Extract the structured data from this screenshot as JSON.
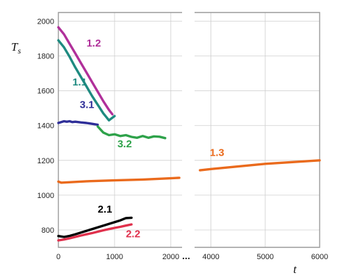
{
  "chart_data": {
    "type": "line",
    "title": "",
    "ylabel": "T_s",
    "xlabel": "t",
    "ylim": [
      700,
      2050
    ],
    "x_axis_break": {
      "segments": [
        [
          0,
          2200
        ],
        [
          3700,
          6000
        ]
      ],
      "marker": "..."
    },
    "x_ticks": [
      0,
      1000,
      2000,
      4000,
      5000,
      6000
    ],
    "y_ticks": [
      800,
      1000,
      1200,
      1400,
      1600,
      1800,
      2000
    ],
    "grid": true,
    "series": [
      {
        "name": "1.2",
        "color": "#b0309a",
        "x": [
          0,
          100,
          200,
          300,
          400,
          500,
          600,
          700,
          800,
          900,
          960
        ],
        "y": [
          1965,
          1925,
          1870,
          1815,
          1760,
          1705,
          1650,
          1595,
          1540,
          1490,
          1465
        ]
      },
      {
        "name": "1.1",
        "color": "#1e8a80",
        "x": [
          0,
          100,
          200,
          300,
          400,
          500,
          600,
          700,
          800,
          900,
          1000
        ],
        "y": [
          1890,
          1850,
          1795,
          1735,
          1680,
          1625,
          1570,
          1520,
          1470,
          1430,
          1455
        ]
      },
      {
        "name": "3.1",
        "color": "#2e2e98",
        "x": [
          0,
          50,
          100,
          150,
          200,
          250,
          300,
          400,
          500,
          600,
          700
        ],
        "y": [
          1415,
          1420,
          1425,
          1422,
          1425,
          1420,
          1422,
          1418,
          1415,
          1410,
          1405
        ]
      },
      {
        "name": "3.2",
        "color": "#2ea24a",
        "x": [
          700,
          800,
          900,
          1000,
          1100,
          1200,
          1300,
          1400,
          1500,
          1600,
          1700,
          1800,
          1900
        ],
        "y": [
          1395,
          1360,
          1345,
          1350,
          1340,
          1345,
          1335,
          1330,
          1340,
          1330,
          1338,
          1336,
          1328
        ]
      },
      {
        "name": "1.3",
        "color": "#ea6a1c",
        "x": [
          0,
          50,
          500,
          1000,
          1500,
          2000,
          2150,
          3800,
          4000,
          4500,
          5000,
          5500,
          6000
        ],
        "y": [
          1078,
          1072,
          1080,
          1085,
          1090,
          1097,
          1100,
          1143,
          1150,
          1165,
          1180,
          1190,
          1200
        ]
      },
      {
        "name": "2.1",
        "color": "#000000",
        "x": [
          0,
          100,
          200,
          300,
          400,
          500,
          600,
          700,
          800,
          900,
          1000,
          1100,
          1200,
          1300
        ],
        "y": [
          765,
          760,
          766,
          775,
          785,
          795,
          805,
          815,
          825,
          835,
          845,
          855,
          868,
          870
        ]
      },
      {
        "name": "2.2",
        "color": "#e0304c",
        "x": [
          0,
          100,
          200,
          300,
          400,
          500,
          600,
          700,
          800,
          900,
          1000,
          1100,
          1200,
          1300
        ],
        "y": [
          740,
          745,
          752,
          760,
          768,
          775,
          782,
          790,
          798,
          805,
          812,
          818,
          825,
          832
        ]
      }
    ],
    "annotations": [
      {
        "text": "1.2",
        "x": 500,
        "y": 1855,
        "series": "1.2"
      },
      {
        "text": "1.1",
        "x": 250,
        "y": 1630,
        "series": "1.1"
      },
      {
        "text": "3.1",
        "x": 380,
        "y": 1500,
        "series": "3.1"
      },
      {
        "text": "3.2",
        "x": 1050,
        "y": 1275,
        "series": "3.2"
      },
      {
        "text": "1.3",
        "x": 3980,
        "y": 1225,
        "series": "1.3"
      },
      {
        "text": "2.1",
        "x": 700,
        "y": 900,
        "series": "2.1"
      },
      {
        "text": "2.2",
        "x": 1200,
        "y": 757,
        "series": "2.2"
      }
    ]
  }
}
